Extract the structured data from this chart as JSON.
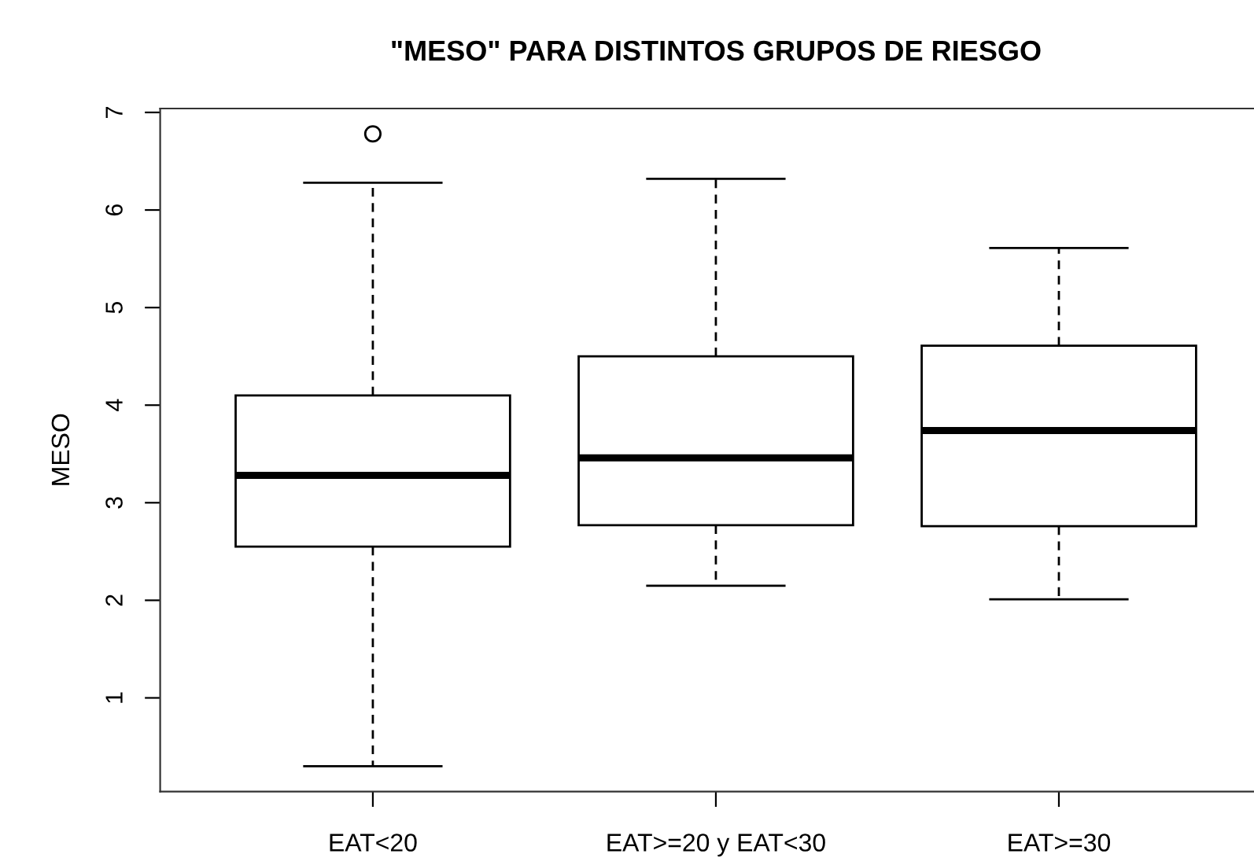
{
  "chart_data": {
    "type": "box",
    "title": "\"MESO\" PARA DISTINTOS GRUPOS DE RIESGO",
    "ylabel": "MESO",
    "categories": [
      "EAT<20",
      "EAT>=20 y EAT<30",
      "EAT>=30"
    ],
    "boxes": [
      {
        "low": 0.3,
        "q1": 2.55,
        "median": 3.28,
        "q3": 4.1,
        "high": 6.28,
        "outliers": [
          6.78
        ]
      },
      {
        "low": 2.15,
        "q1": 2.77,
        "median": 3.46,
        "q3": 4.5,
        "high": 6.32
      },
      {
        "low": 2.01,
        "q1": 2.76,
        "median": 3.74,
        "q3": 4.61,
        "high": 5.61
      }
    ],
    "ylim": [
      0.04,
      7.04
    ],
    "yticks": [
      1,
      2,
      3,
      4,
      5,
      6,
      7
    ],
    "marker": "circle",
    "line_style": "dashed"
  }
}
